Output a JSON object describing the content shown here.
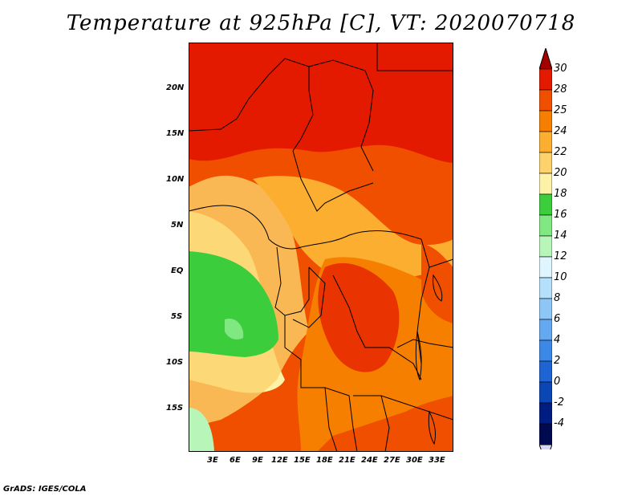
{
  "title": "Temperature at 925hPa [C], VT: 2020070718",
  "credit": "GrADS: IGES/COLA",
  "lat_labels": [
    "20N",
    "15N",
    "10N",
    "5N",
    "EQ",
    "5S",
    "10S",
    "15S"
  ],
  "lon_labels": [
    "3E",
    "6E",
    "9E",
    "12E",
    "15E",
    "18E",
    "21E",
    "24E",
    "27E",
    "30E",
    "33E"
  ],
  "colorbar": {
    "labels": [
      "30",
      "28",
      "25",
      "24",
      "22",
      "20",
      "18",
      "16",
      "14",
      "12",
      "10",
      "8",
      "6",
      "4",
      "2",
      "0",
      "-2",
      "-4"
    ],
    "colors": [
      "#a50000",
      "#e41a00",
      "#f04f00",
      "#f77f00",
      "#fcae30",
      "#fdd26a",
      "#fef1a8",
      "#3ccd3c",
      "#80e880",
      "#b8f5b8",
      "#dff5ff",
      "#b4e0fc",
      "#8ec6f8",
      "#64a8f0",
      "#3c88e6",
      "#1e64d2",
      "#0a46b4",
      "#001e82",
      "#000a50",
      "#d6d6f5"
    ]
  },
  "regions": {
    "north": "#e41a00",
    "band": "#f04f00",
    "mid": "#f77f00",
    "light": "#fcae30",
    "pale": "#fdd26a",
    "cream": "#fef1a8",
    "green": "#3ccd3c",
    "lightgreen": "#80e880",
    "mint": "#b8f5b8"
  }
}
